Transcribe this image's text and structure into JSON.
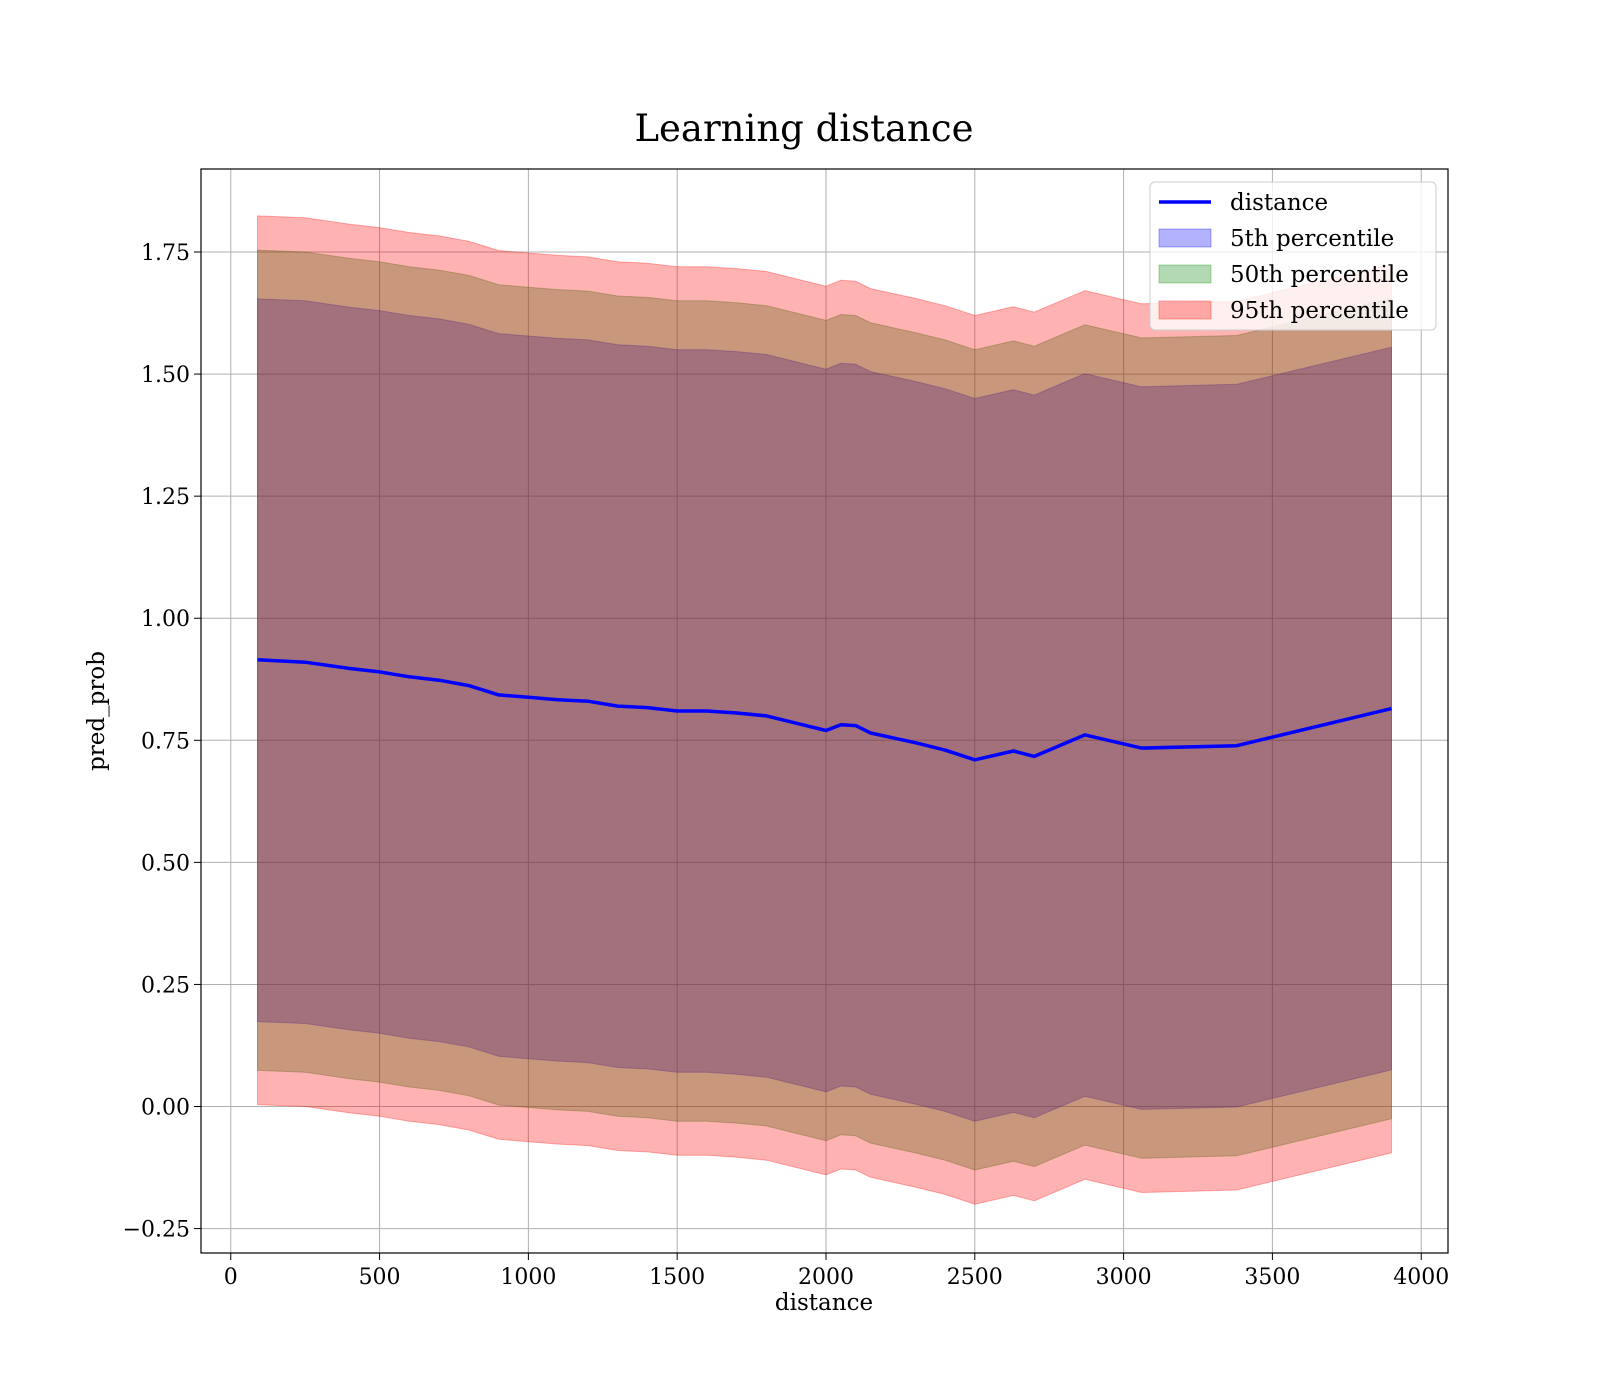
{
  "chart_data": {
    "type": "line",
    "title": "Learning distance",
    "xlabel": "distance",
    "ylabel": "pred_prob",
    "xlim": [
      -100,
      4090
    ],
    "ylim": [
      -0.3,
      1.92
    ],
    "xticks": [
      0,
      500,
      1000,
      1500,
      2000,
      2500,
      3000,
      3500,
      4000
    ],
    "xtick_labels": [
      "0",
      "500",
      "1000",
      "1500",
      "2000",
      "2500",
      "3000",
      "3500",
      "4000"
    ],
    "yticks": [
      -0.25,
      0.0,
      0.25,
      0.5,
      0.75,
      1.0,
      1.25,
      1.5,
      1.75
    ],
    "ytick_labels": [
      "−0.25",
      "0.00",
      "0.25",
      "0.50",
      "0.75",
      "1.00",
      "1.25",
      "1.50",
      "1.75"
    ],
    "grid": true,
    "legend_position": "top-right",
    "legend": [
      {
        "label": "distance",
        "kind": "line",
        "color": "#0000ff"
      },
      {
        "label": "5th percentile",
        "kind": "patch",
        "color": "#0000ff"
      },
      {
        "label": "50th percentile",
        "kind": "patch",
        "color": "#008000"
      },
      {
        "label": "95th percentile",
        "kind": "patch",
        "color": "#ff0000"
      }
    ],
    "x": [
      90,
      250,
      400,
      500,
      600,
      700,
      800,
      900,
      1000,
      1100,
      1200,
      1300,
      1400,
      1500,
      1600,
      1700,
      1800,
      1900,
      2000,
      2050,
      2100,
      2150,
      2300,
      2400,
      2500,
      2630,
      2700,
      2870,
      3060,
      3380,
      3900
    ],
    "series": [
      {
        "name": "distance",
        "values": [
          0.915,
          0.91,
          0.897,
          0.89,
          0.88,
          0.873,
          0.862,
          0.843,
          0.838,
          0.833,
          0.83,
          0.82,
          0.817,
          0.81,
          0.81,
          0.806,
          0.8,
          0.785,
          0.77,
          0.782,
          0.78,
          0.765,
          0.745,
          0.73,
          0.71,
          0.728,
          0.717,
          0.761,
          0.734,
          0.739,
          0.815
        ]
      },
      {
        "name": "5th percentile",
        "lower": [
          0.174,
          0.17,
          0.157,
          0.15,
          0.14,
          0.133,
          0.122,
          0.103,
          0.098,
          0.093,
          0.09,
          0.08,
          0.077,
          0.07,
          0.07,
          0.066,
          0.06,
          0.045,
          0.03,
          0.042,
          0.04,
          0.025,
          0.005,
          -0.01,
          -0.03,
          -0.012,
          -0.023,
          0.021,
          -0.006,
          -0.001,
          0.075
        ],
        "upper": [
          1.654,
          1.65,
          1.637,
          1.63,
          1.62,
          1.613,
          1.602,
          1.583,
          1.578,
          1.573,
          1.57,
          1.56,
          1.557,
          1.55,
          1.55,
          1.546,
          1.54,
          1.525,
          1.51,
          1.522,
          1.52,
          1.505,
          1.485,
          1.47,
          1.45,
          1.468,
          1.457,
          1.501,
          1.474,
          1.479,
          1.555
        ]
      },
      {
        "name": "50th percentile",
        "lower": [
          0.074,
          0.07,
          0.057,
          0.05,
          0.04,
          0.033,
          0.022,
          0.003,
          -0.002,
          -0.007,
          -0.01,
          -0.02,
          -0.023,
          -0.03,
          -0.03,
          -0.034,
          -0.04,
          -0.055,
          -0.07,
          -0.058,
          -0.06,
          -0.075,
          -0.095,
          -0.11,
          -0.13,
          -0.112,
          -0.123,
          -0.079,
          -0.106,
          -0.101,
          -0.025
        ],
        "upper": [
          1.754,
          1.75,
          1.737,
          1.73,
          1.72,
          1.713,
          1.702,
          1.683,
          1.678,
          1.673,
          1.67,
          1.66,
          1.657,
          1.65,
          1.65,
          1.646,
          1.64,
          1.625,
          1.61,
          1.622,
          1.62,
          1.605,
          1.585,
          1.57,
          1.55,
          1.568,
          1.557,
          1.601,
          1.574,
          1.579,
          1.655
        ]
      },
      {
        "name": "95th percentile",
        "lower": [
          0.004,
          0.0,
          -0.013,
          -0.02,
          -0.03,
          -0.037,
          -0.048,
          -0.067,
          -0.072,
          -0.077,
          -0.08,
          -0.09,
          -0.093,
          -0.1,
          -0.1,
          -0.104,
          -0.11,
          -0.125,
          -0.14,
          -0.128,
          -0.13,
          -0.145,
          -0.165,
          -0.18,
          -0.2,
          -0.182,
          -0.193,
          -0.149,
          -0.176,
          -0.171,
          -0.095
        ],
        "upper": [
          1.824,
          1.82,
          1.807,
          1.8,
          1.79,
          1.783,
          1.772,
          1.753,
          1.748,
          1.743,
          1.74,
          1.73,
          1.727,
          1.72,
          1.72,
          1.716,
          1.71,
          1.695,
          1.68,
          1.692,
          1.69,
          1.675,
          1.655,
          1.64,
          1.62,
          1.638,
          1.627,
          1.671,
          1.644,
          1.649,
          1.725
        ]
      }
    ]
  }
}
